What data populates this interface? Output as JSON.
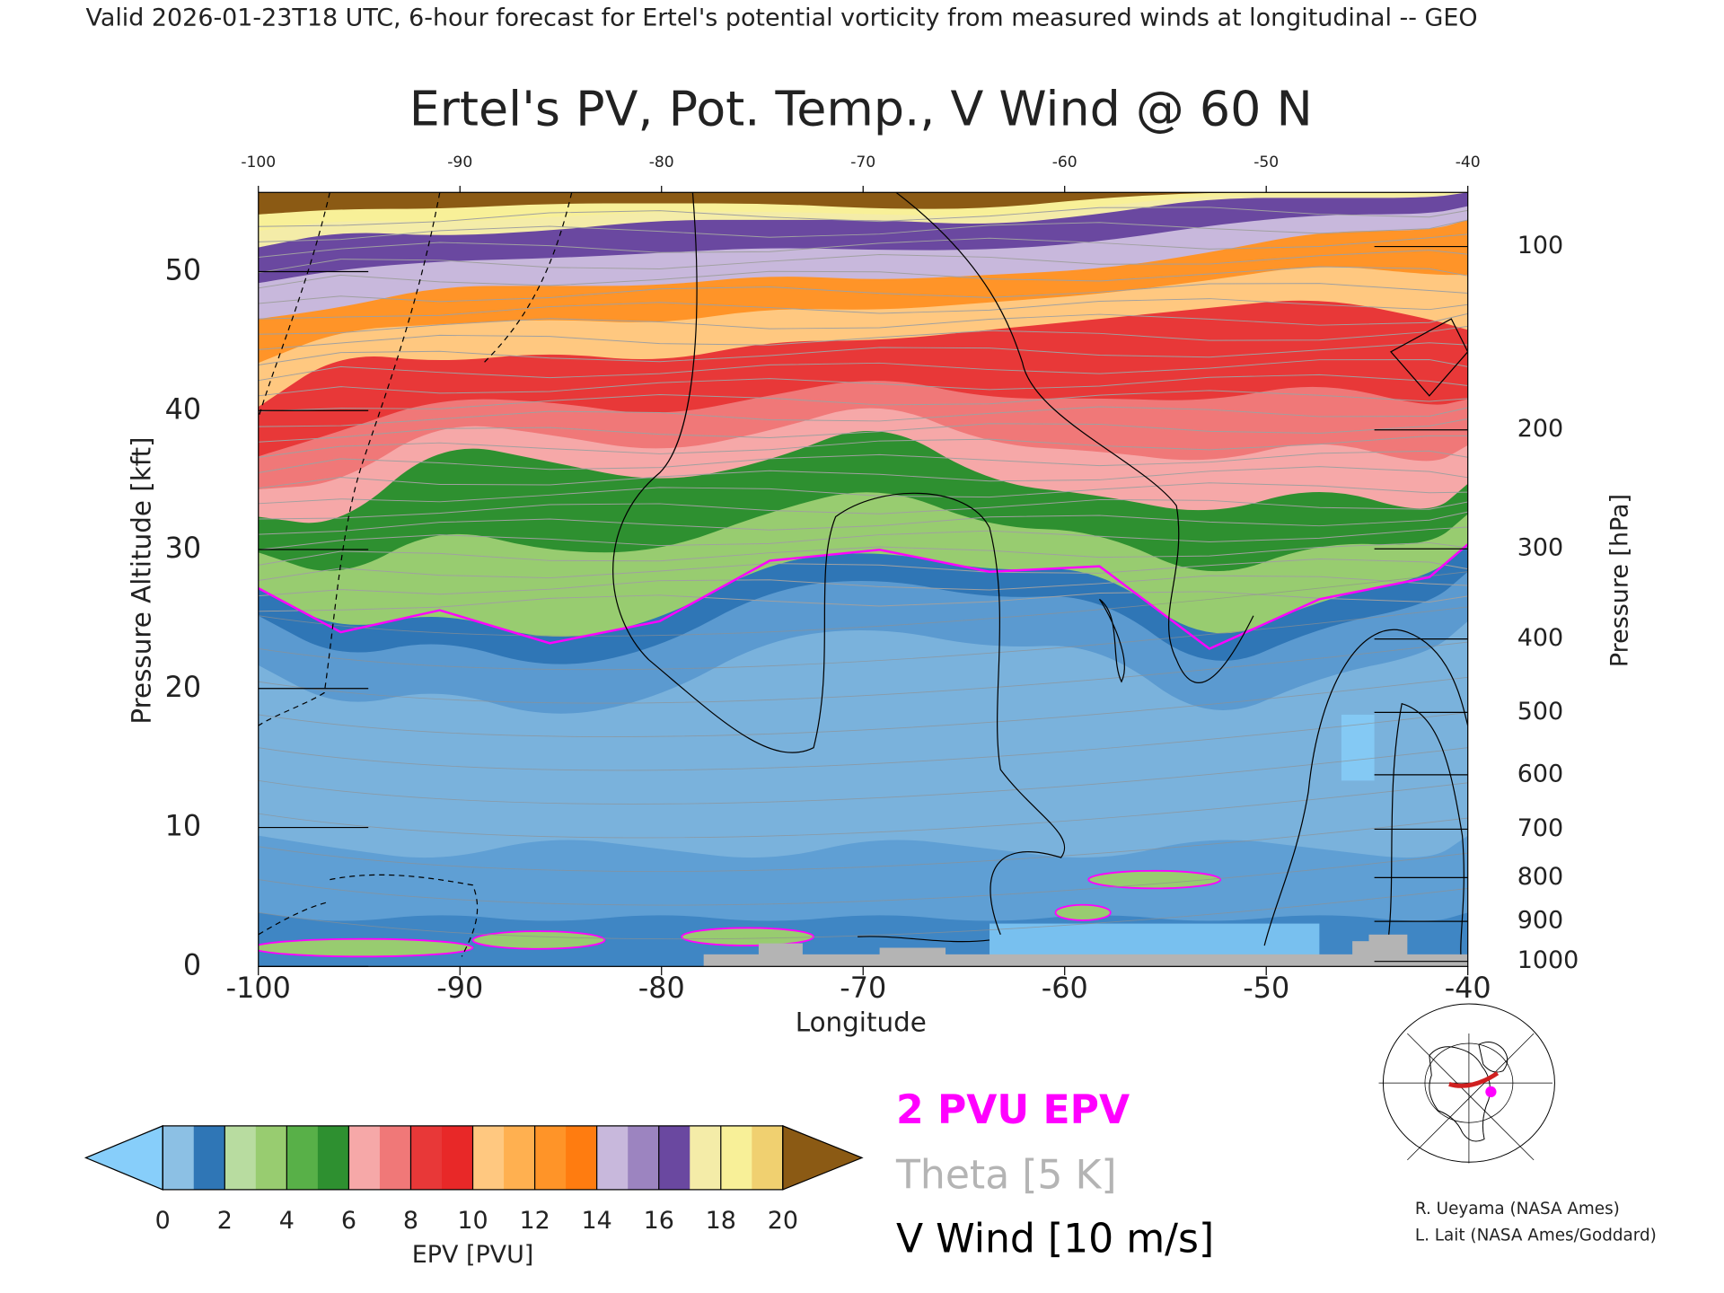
{
  "header": "Valid 2026-01-23T18 UTC, 6-hour forecast for Ertel's potential vorticity from measured winds at longitudinal -- GEO",
  "chart_data": {
    "type": "cross-section",
    "title": "Ertel's PV, Pot. Temp., V Wind @ 60 N",
    "x_label": "Longitude",
    "y_label": "Pressure Altitude [kft]",
    "y2_label": "Pressure [hPa]",
    "xlim": [
      -100,
      -40
    ],
    "xticks": [
      -100,
      -90,
      -80,
      -70,
      -60,
      -50,
      -40
    ],
    "ylim": [
      0,
      55.7
    ],
    "yticks": [
      0,
      10,
      20,
      30,
      40,
      50
    ],
    "y2scale": "pressure-altitude",
    "y2ticks": [
      100,
      200,
      300,
      400,
      500,
      600,
      700,
      800,
      900,
      1000
    ],
    "colorbar": {
      "label": "EPV [PVU]",
      "clim": [
        0,
        20
      ],
      "ticks": [
        0,
        2,
        4,
        6,
        8,
        10,
        12,
        14,
        16,
        18,
        20
      ],
      "colors": [
        "#8cc0e4",
        "#2f76b6",
        "#b8dca0",
        "#98cc70",
        "#58b048",
        "#2e9030",
        "#f6a8a8",
        "#f07878",
        "#e83838",
        "#e82828",
        "#ffc880",
        "#ffb050",
        "#ff9428",
        "#ff7c10",
        "#c8b8dc",
        "#9c84c0",
        "#6a48a0",
        "#f4eca8",
        "#f8f098",
        "#f0d070"
      ],
      "under_color": "#87cefa",
      "over_color": "#8b5a14"
    },
    "legend": [
      {
        "name": "2 PVU EPV",
        "color": "#ff00ff"
      },
      {
        "name": "Theta [5 K]",
        "color": "#b4b4b4"
      },
      {
        "name": "V Wind [10 m/s]",
        "color": "#000000"
      }
    ]
  },
  "credits": [
    "R. Ueyama (NASA Ames)",
    "L. Lait (NASA Ames/Goddard)"
  ]
}
